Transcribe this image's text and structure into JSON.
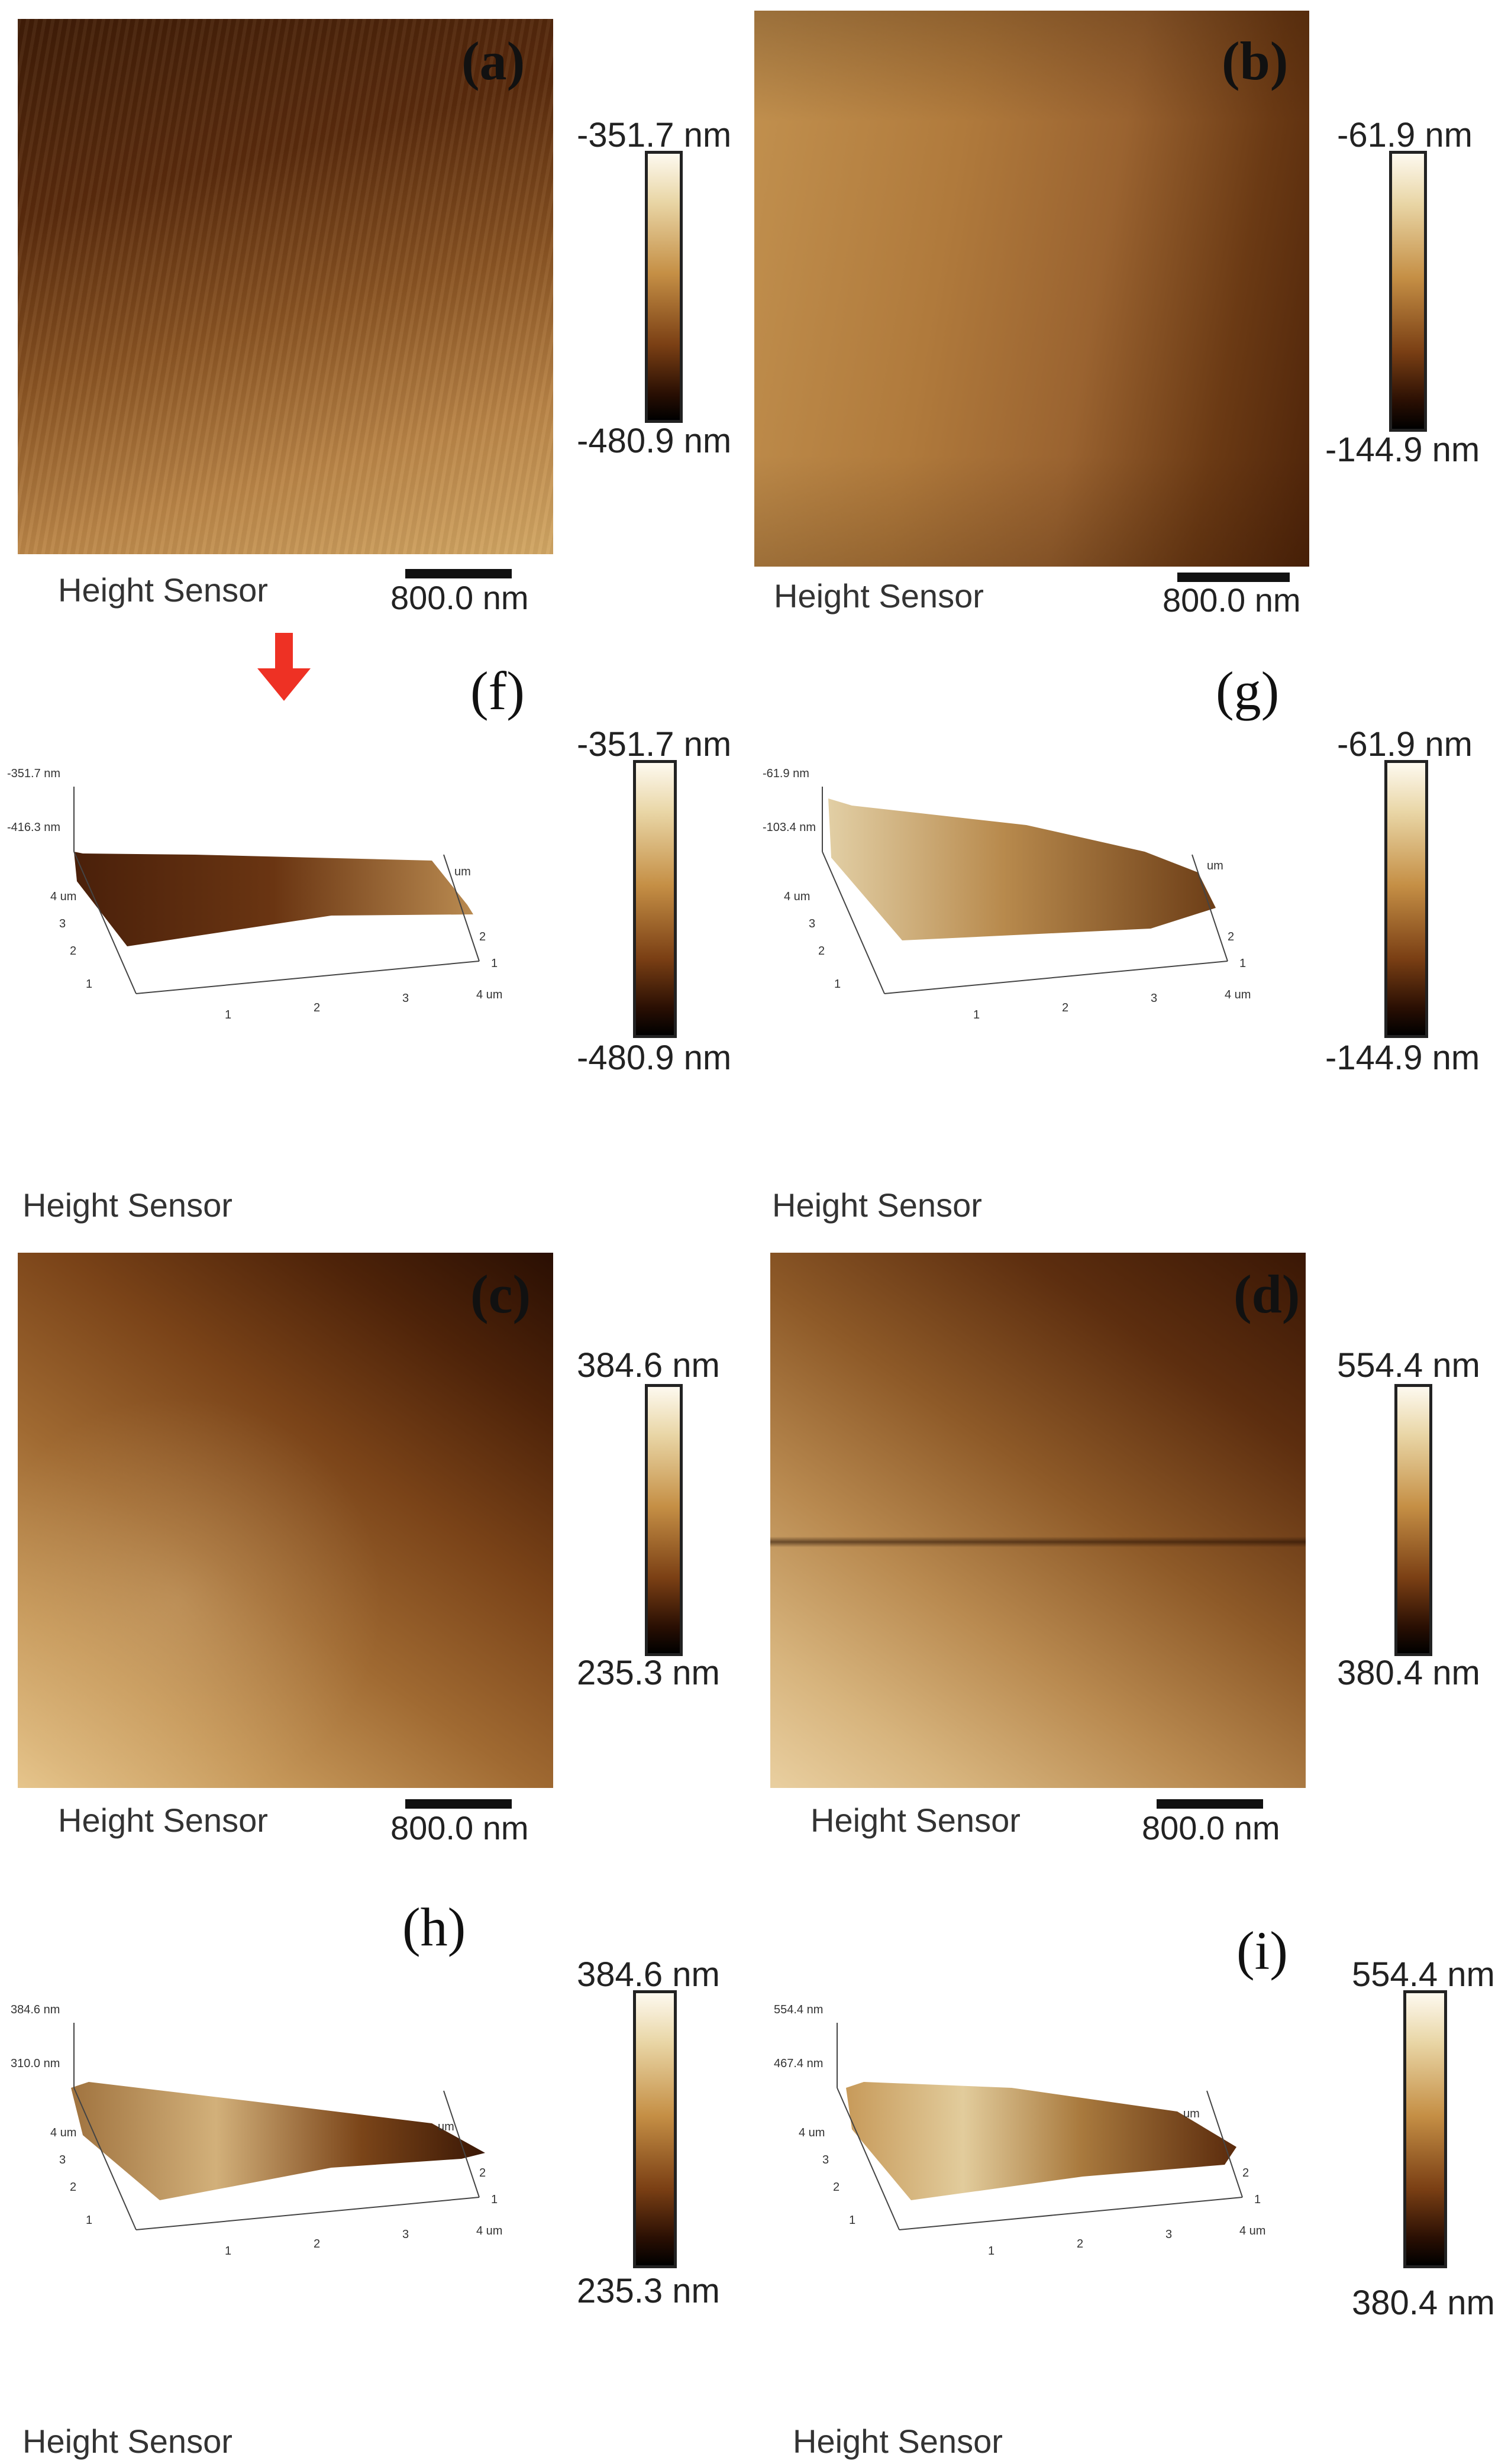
{
  "panels": {
    "a": {
      "label": "(a)",
      "max": "-351.7 nm",
      "min": "-480.9 nm",
      "sensor": "Height Sensor",
      "scale": "800.0 nm"
    },
    "b": {
      "label": "(b)",
      "max": "-61.9 nm",
      "min": "-144.9 nm",
      "sensor": "Height Sensor",
      "scale": "800.0 nm"
    },
    "f": {
      "label": "(f)",
      "max": "-351.7 nm",
      "min": "-480.9 nm",
      "sensor": "Height Sensor",
      "axis_top": "-351.7 nm",
      "axis_mid": "-416.3 nm"
    },
    "g": {
      "label": "(g)",
      "max": "-61.9 nm",
      "min": "-144.9 nm",
      "sensor": "Height Sensor",
      "axis_top": "-61.9 nm",
      "axis_mid": "-103.4 nm"
    },
    "c": {
      "label": "(c)",
      "max": "384.6 nm",
      "min": "235.3 nm",
      "sensor": "Height Sensor",
      "scale": "800.0 nm"
    },
    "d": {
      "label": "(d)",
      "max": "554.4 nm",
      "min": "380.4 nm",
      "sensor": "Height Sensor",
      "scale": "800.0 nm"
    },
    "h": {
      "label": "(h)",
      "max": "384.6 nm",
      "min": "235.3 nm",
      "sensor": "Height Sensor",
      "axis_top": "384.6 nm",
      "axis_mid": "310.0 nm"
    },
    "i": {
      "label": "(i)",
      "max": "554.4 nm",
      "min": "380.4 nm",
      "sensor": "Height Sensor",
      "axis_top": "554.4 nm",
      "axis_mid": "467.4 nm"
    }
  },
  "axis3d": {
    "unit": "um",
    "ticks_x": [
      "1",
      "2",
      "3",
      "4 um"
    ],
    "ticks_y": [
      "1",
      "2",
      "3",
      "4 um"
    ],
    "ticks_right": [
      "1",
      "2",
      "um"
    ]
  },
  "colors": {
    "arrow": "#ee3124"
  }
}
